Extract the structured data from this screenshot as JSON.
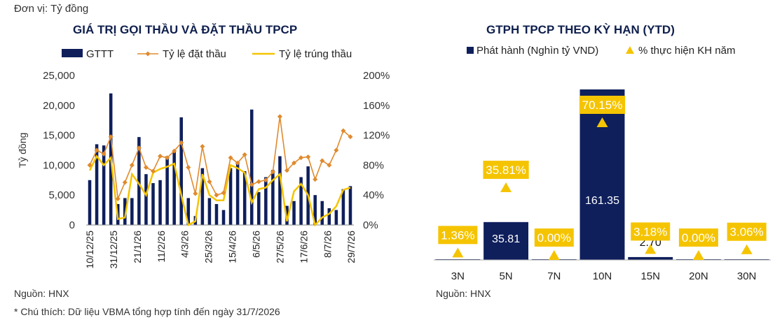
{
  "unit_label": "Đơn vị: Tỷ đồng",
  "source_left": "Nguồn: HNX",
  "source_right": "Nguồn: HNX",
  "footnote": "* Chú thích: Dữ liệu VBMA tổng hợp tính đến ngày 31/7/2026",
  "colors": {
    "navy": "#0f1f5c",
    "orange": "#e08a2e",
    "gold": "#f5c400"
  },
  "chart_data": [
    {
      "type": "bar",
      "title": "GIÁ TRỊ GỌI THẦU VÀ ĐẶT THẦU TPCP",
      "ylabel": "Tỷ đồng",
      "ylim": [
        0,
        25000
      ],
      "yticks": [
        "0",
        "5,000",
        "10,000",
        "15,000",
        "20,000",
        "25,000"
      ],
      "y2lim": [
        0,
        2.0
      ],
      "y2ticks": [
        "0%",
        "40%",
        "80%",
        "120%",
        "160%",
        "200%"
      ],
      "xtick_labels": [
        "10/12/25",
        "31/12/25",
        "21/1/26",
        "11/2/26",
        "4/3/26",
        "25/3/26",
        "15/4/26",
        "6/5/26",
        "27/5/26",
        "17/6/26",
        "8/7/26",
        "29/7/26"
      ],
      "legend": [
        "GTTT",
        "Tỷ lệ đặt thầu",
        "Tỷ lệ trúng thầu"
      ],
      "legend_position": "top",
      "series": [
        {
          "name": "GTTT",
          "type": "bar",
          "values": [
            7500,
            13500,
            13300,
            22000,
            3500,
            4500,
            4500,
            14700,
            8500,
            7000,
            7500,
            11500,
            12500,
            18000,
            4500,
            1500,
            9500,
            4500,
            3500,
            2500,
            9500,
            10500,
            9000,
            19300,
            5500,
            8000,
            9200,
            11500,
            3200,
            4000,
            8000,
            9800,
            5000,
            4000,
            2800,
            2500,
            6000,
            6500
          ]
        },
        {
          "name": "Tỷ lệ đặt thầu",
          "type": "line",
          "values": [
            0.8,
            1.0,
            0.95,
            1.18,
            0.35,
            0.57,
            0.8,
            1.03,
            0.77,
            0.72,
            0.92,
            0.9,
            0.99,
            1.1,
            0.77,
            0.42,
            1.05,
            0.58,
            0.4,
            0.43,
            0.9,
            0.83,
            0.94,
            0.54,
            0.58,
            0.6,
            0.71,
            1.45,
            0.73,
            0.83,
            0.9,
            0.91,
            0.61,
            0.86,
            0.8,
            1.0,
            1.26,
            1.18
          ]
        },
        {
          "name": "Tỷ lệ trúng thầu",
          "type": "line",
          "values": [
            0.73,
            0.92,
            0.8,
            0.9,
            0.08,
            0.1,
            0.68,
            0.55,
            0.4,
            0.7,
            0.75,
            0.78,
            0.82,
            0.4,
            0.0,
            0.05,
            0.68,
            0.4,
            0.33,
            0.33,
            0.8,
            0.76,
            0.7,
            0.3,
            0.48,
            0.5,
            0.6,
            0.68,
            0.05,
            0.45,
            0.55,
            0.4,
            0.0,
            0.1,
            0.15,
            0.25,
            0.47,
            0.5
          ]
        }
      ]
    },
    {
      "type": "bar",
      "title": "GTPH TPCP THEO KỲ HẠN (YTD)",
      "categories": [
        "3N",
        "5N",
        "7N",
        "10N",
        "15N",
        "20N",
        "30N"
      ],
      "legend": [
        "Phát hành (Nghìn tỷ VND)",
        "% thực hiện KH năm"
      ],
      "legend_position": "top",
      "series": [
        {
          "name": "Phát hành (Nghìn tỷ VND)",
          "type": "bar",
          "values": [
            0,
            35.81,
            0,
            161.35,
            2.7,
            0,
            0
          ],
          "labels": [
            "",
            "35.81",
            "",
            "161.35",
            "2.70",
            "",
            ""
          ]
        },
        {
          "name": "% thực hiện KH năm",
          "type": "marker",
          "values": [
            1.36,
            35.81,
            0.0,
            70.15,
            3.18,
            0.0,
            3.06
          ],
          "labels": [
            "1.36%",
            "35.81%",
            "0.00%",
            "70.15%",
            "3.18%",
            "0.00%",
            "3.06%"
          ]
        }
      ]
    }
  ]
}
